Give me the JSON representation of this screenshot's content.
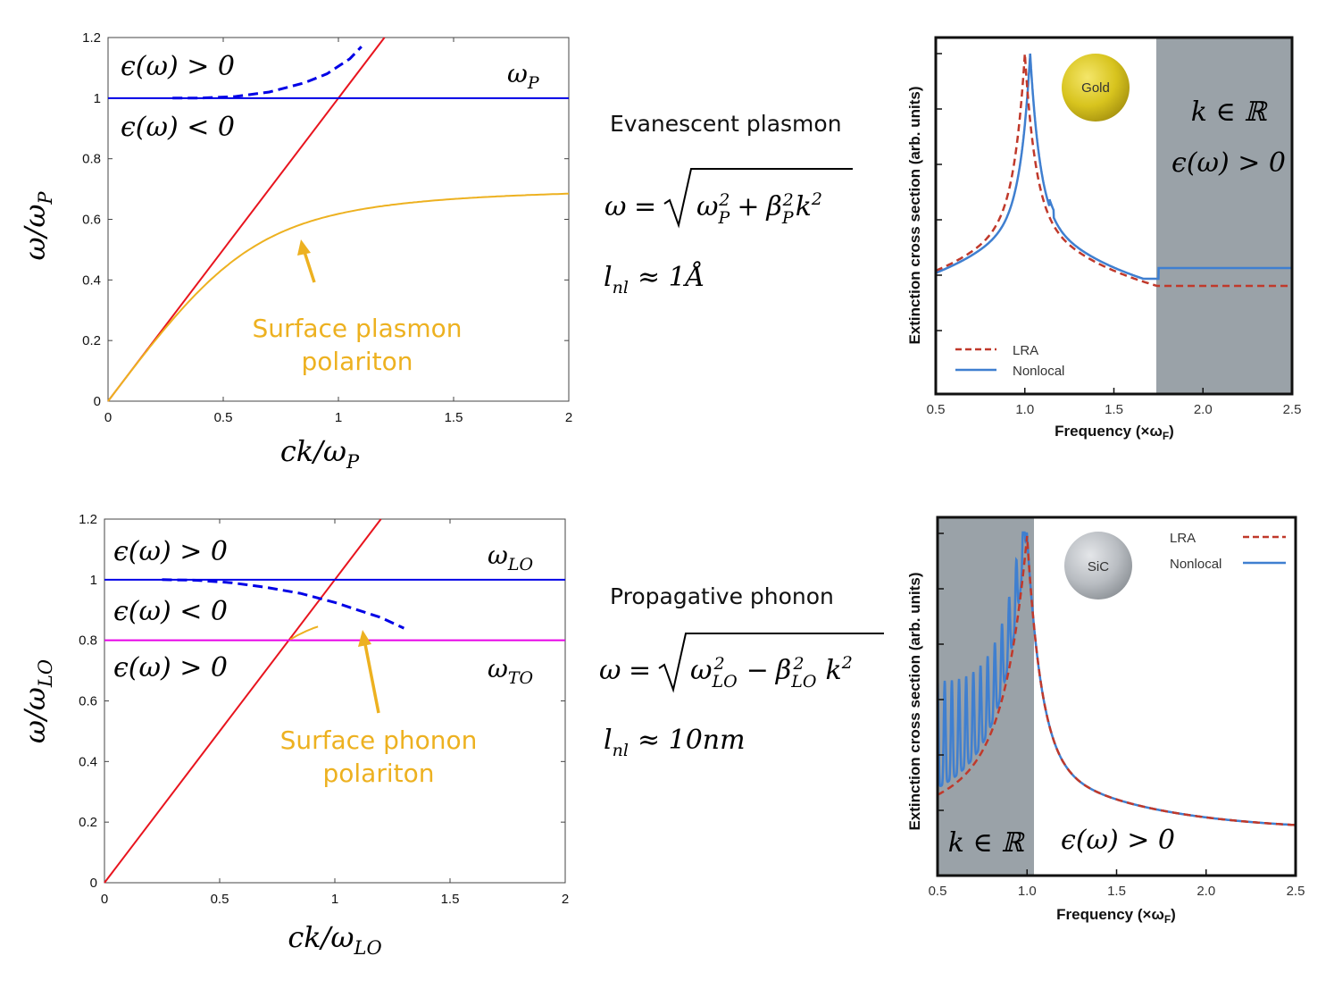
{
  "colors": {
    "blue": "#0000E6",
    "red": "#E8141E",
    "orange": "#EDB120",
    "magenta": "#E600E6",
    "lra": "#C0392B",
    "nonlocal": "#3F7FD0",
    "shade": "#9AA2A8"
  },
  "chart_data": [
    {
      "type": "line",
      "xlabel": "ck/ω_P",
      "ylabel": "ω/ω_P",
      "xlim": [
        0,
        2
      ],
      "ylim": [
        0,
        1.2
      ],
      "xticks": [
        "0",
        "0.5",
        "1",
        "1.5",
        "2"
      ],
      "yticks": [
        "0",
        "0.2",
        "0.4",
        "0.6",
        "0.8",
        "1",
        "1.2"
      ],
      "series": [
        {
          "kind": "light-line",
          "slope": 1,
          "color": "red"
        },
        {
          "kind": "hline",
          "y": 1.0,
          "color": "blue"
        },
        {
          "kind": "dashed",
          "color": "blue",
          "x": [
            0.28,
            0.4,
            0.55,
            0.7,
            0.85,
            0.95,
            1.05,
            1.1
          ],
          "y": [
            1.0,
            1.0,
            1.005,
            1.02,
            1.05,
            1.08,
            1.13,
            1.17
          ]
        },
        {
          "kind": "spp",
          "color": "orange",
          "asymptote": 0.7071
        }
      ],
      "annotations": {
        "upper": "ϵ(ω) > 0",
        "lower": "ϵ(ω) < 0",
        "line_label": "ω_P",
        "polariton_line1": "Surface plasmon",
        "polariton_line2": "polariton"
      }
    },
    {
      "type": "line",
      "xlabel": "ck/ω_LO",
      "ylabel": "ω/ω_LO",
      "xlim": [
        0,
        2
      ],
      "ylim": [
        0,
        1.2
      ],
      "xticks": [
        "0",
        "0.5",
        "1",
        "1.5",
        "2"
      ],
      "yticks": [
        "0",
        "0.2",
        "0.4",
        "0.6",
        "0.8",
        "1",
        "1.2"
      ],
      "series": [
        {
          "kind": "light-line",
          "slope": 1,
          "color": "red"
        },
        {
          "kind": "hline",
          "y": 1.0,
          "color": "blue"
        },
        {
          "kind": "hline",
          "y": 0.8,
          "color": "magenta"
        },
        {
          "kind": "dashed",
          "color": "blue",
          "x": [
            0.25,
            0.4,
            0.55,
            0.7,
            0.85,
            1.0,
            1.1,
            1.2,
            1.3
          ],
          "y": [
            1.0,
            0.998,
            0.99,
            0.975,
            0.955,
            0.925,
            0.9,
            0.875,
            0.84
          ]
        },
        {
          "kind": "sphp",
          "color": "orange",
          "wlo": 1.0,
          "wto": 0.8,
          "eps_ratio": 1.5625
        }
      ],
      "annotations": {
        "upper": "ϵ(ω) > 0",
        "middle": "ϵ(ω) < 0",
        "lower": "ϵ(ω) > 0",
        "line_label_lo": "ω_LO",
        "line_label_to": "ω_TO",
        "polariton_line1": "Surface phonon",
        "polariton_line2": "polariton"
      }
    },
    {
      "type": "line",
      "xlabel": "Frequency (×ω",
      "xlabel_sub": "F",
      "xlabel_tail": ")",
      "ylabel": "Extinction cross section (arb. units)",
      "xlim": [
        0.5,
        2.5
      ],
      "xticks": [
        "0.5",
        "1.0",
        "1.5",
        "2.0",
        "2.5"
      ],
      "legend": [
        "LRA",
        "Nonlocal"
      ],
      "particle": "Gold",
      "shaded_from": 1.75,
      "annotations": {
        "k": "k ∈ ℝ",
        "eps": "ϵ(ω) > 0"
      }
    },
    {
      "type": "line",
      "xlabel": "Frequency (×ω",
      "xlabel_sub": "F",
      "xlabel_tail": ")",
      "ylabel": "Extinction cross section (arb. units)",
      "xlim": [
        0.5,
        2.5
      ],
      "xticks": [
        "0.5",
        "1.0",
        "1.5",
        "2.0",
        "2.5"
      ],
      "legend": [
        "LRA",
        "Nonlocal"
      ],
      "particle": "SiC",
      "shaded_to": 1.05,
      "annotations": {
        "k": "k ∈ ℝ",
        "eps": "ϵ(ω) > 0"
      }
    }
  ],
  "middle": {
    "plasmon_title": "Evanescent plasmon",
    "plasmon_formula": "ω = √(ω_P² + β_P² k²)",
    "plasmon_length": "l_nl ≈ 1Å",
    "phonon_title": "Propagative phonon",
    "phonon_formula": "ω = √(ω_LO² − β_LO² k²)",
    "phonon_length": "l_nl ≈ 10nm"
  }
}
